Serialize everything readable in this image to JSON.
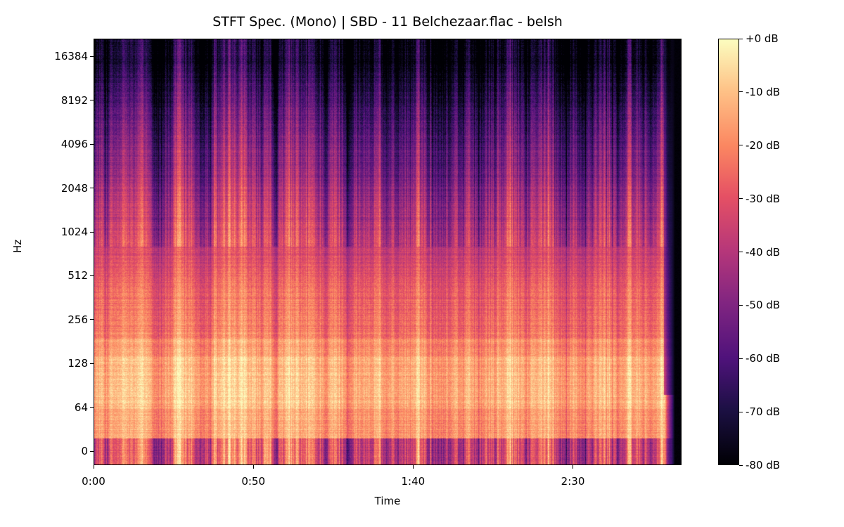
{
  "chart_data": {
    "type": "heatmap",
    "title": "STFT Spec. (Mono) | SBD - 11 Belchezaar.flac - belsh",
    "xlabel": "Time",
    "ylabel": "Hz",
    "x_ticks": [
      {
        "label": "0:00",
        "value": 0
      },
      {
        "label": "0:50",
        "value": 50
      },
      {
        "label": "1:40",
        "value": 100
      },
      {
        "label": "2:30",
        "value": 150
      }
    ],
    "xlim": [
      0,
      184
    ],
    "y_scale": "log2",
    "y_ticks": [
      "0",
      "64",
      "128",
      "256",
      "512",
      "1024",
      "2048",
      "4096",
      "8192",
      "16384"
    ],
    "colormap": "magma",
    "colorbar": {
      "range": [
        -80,
        0
      ],
      "ticks": [
        "+0 dB",
        "-10 dB",
        "-20 dB",
        "-30 dB",
        "-40 dB",
        "-50 dB",
        "-60 dB",
        "-70 dB",
        "-80 dB"
      ],
      "tick_values": [
        0,
        -10,
        -20,
        -30,
        -40,
        -50,
        -60,
        -70,
        -80
      ]
    },
    "audio_end_seconds": 182
  }
}
